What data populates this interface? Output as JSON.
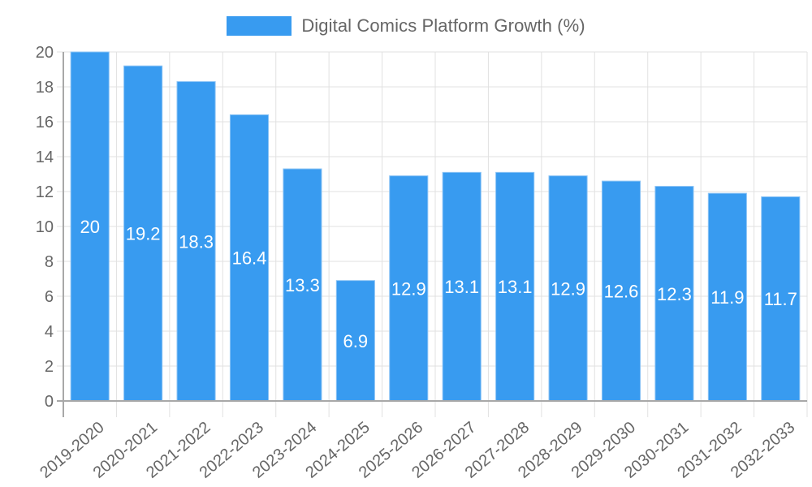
{
  "legend": {
    "label": "Digital Comics Platform Growth (%)",
    "color": "#389bf0"
  },
  "colors": {
    "bar_fill": "#389bf0",
    "bar_border": "#8cc4f5",
    "grid": "#e1e1e1",
    "axis": "#a8a8a8",
    "tick_text": "#666666",
    "data_label": "#ffffff"
  },
  "chart_data": {
    "type": "bar",
    "title": "",
    "xlabel": "",
    "ylabel": "",
    "ylim": [
      0,
      20
    ],
    "y_ticks": [
      0,
      2,
      4,
      6,
      8,
      10,
      12,
      14,
      16,
      18,
      20
    ],
    "grid": true,
    "legend_position": "top",
    "categories": [
      "2019-2020",
      "2020-2021",
      "2021-2022",
      "2022-2023",
      "2023-2024",
      "2024-2025",
      "2025-2026",
      "2026-2027",
      "2027-2028",
      "2028-2029",
      "2029-2030",
      "2030-2031",
      "2031-2032",
      "2032-2033"
    ],
    "series": [
      {
        "name": "Digital Comics Platform Growth (%)",
        "values": [
          20,
          19.2,
          18.3,
          16.4,
          13.3,
          6.9,
          12.9,
          13.1,
          13.1,
          12.9,
          12.6,
          12.3,
          11.9,
          11.7
        ]
      }
    ],
    "data_labels": [
      "20",
      "19.2",
      "18.3",
      "16.4",
      "13.3",
      "6.9",
      "12.9",
      "13.1",
      "13.1",
      "12.9",
      "12.6",
      "12.3",
      "11.9",
      "11.7"
    ]
  }
}
